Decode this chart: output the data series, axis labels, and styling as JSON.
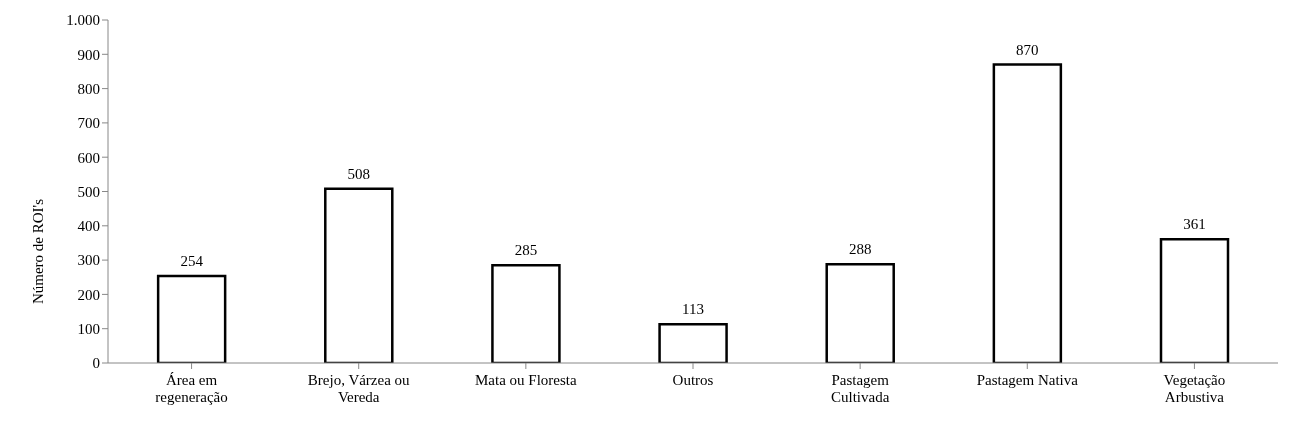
{
  "chart_data": {
    "type": "bar",
    "ylabel": "Número de ROI's",
    "categories": [
      "Área em regeneração",
      "Brejo, Várzea ou Vereda",
      "Mata ou Floresta",
      "Outros",
      "Pastagem Cultivada",
      "Pastagem Nativa",
      "Vegetação Arbustiva"
    ],
    "values": [
      254,
      508,
      285,
      113,
      288,
      870,
      361
    ],
    "color": "#000000",
    "ylim": [
      0,
      1000
    ],
    "yticks": [
      0,
      100,
      200,
      300,
      400,
      500,
      600,
      700,
      800,
      900,
      {
        "value": 1000,
        "label": "1.000"
      }
    ],
    "data_labels": true,
    "grid": false,
    "legend": false
  }
}
